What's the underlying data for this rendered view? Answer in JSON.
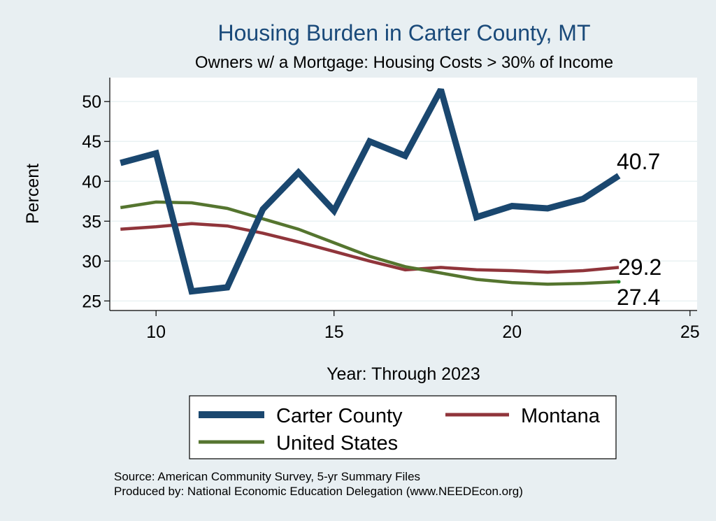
{
  "chart_data": {
    "type": "line",
    "title": "Housing Burden in Carter County, MT",
    "subtitle": "Owners w/ a Mortgage: Housing Costs > 30% of Income",
    "xlabel": "Year: Through 2023",
    "ylabel": "Percent",
    "xlim": [
      8.7,
      25.2
    ],
    "ylim": [
      23.8,
      53
    ],
    "x_ticks": [
      10,
      15,
      20,
      25
    ],
    "y_ticks": [
      25,
      30,
      35,
      40,
      45,
      50
    ],
    "grid": true,
    "legend_position": "bottom",
    "x": [
      9,
      10,
      11,
      12,
      13,
      14,
      15,
      16,
      17,
      18,
      19,
      20,
      21,
      22,
      23
    ],
    "series": [
      {
        "name": "Carter County",
        "color": "#1a476f",
        "values": [
          42.3,
          43.5,
          26.2,
          26.7,
          36.5,
          41.1,
          36.3,
          45.0,
          43.2,
          51.5,
          35.5,
          36.9,
          36.6,
          37.8,
          40.7
        ],
        "end_label": "40.7"
      },
      {
        "name": "Montana",
        "color": "#90353b",
        "values": [
          34.0,
          34.3,
          34.7,
          34.4,
          33.5,
          32.4,
          31.2,
          30.0,
          28.9,
          29.2,
          28.9,
          28.8,
          28.6,
          28.8,
          29.2
        ],
        "end_label": "29.2"
      },
      {
        "name": "United States",
        "color": "#55752f",
        "values": [
          36.7,
          37.4,
          37.3,
          36.6,
          35.3,
          34.0,
          32.3,
          30.6,
          29.3,
          28.5,
          27.7,
          27.3,
          27.1,
          27.2,
          27.4
        ],
        "end_label": "27.4"
      }
    ]
  },
  "footer": {
    "source": "Source: American Community Survey, 5-yr Summary Files",
    "produced": "Produced by: National Economic Education Delegation (www.NEEDEcon.org)"
  }
}
